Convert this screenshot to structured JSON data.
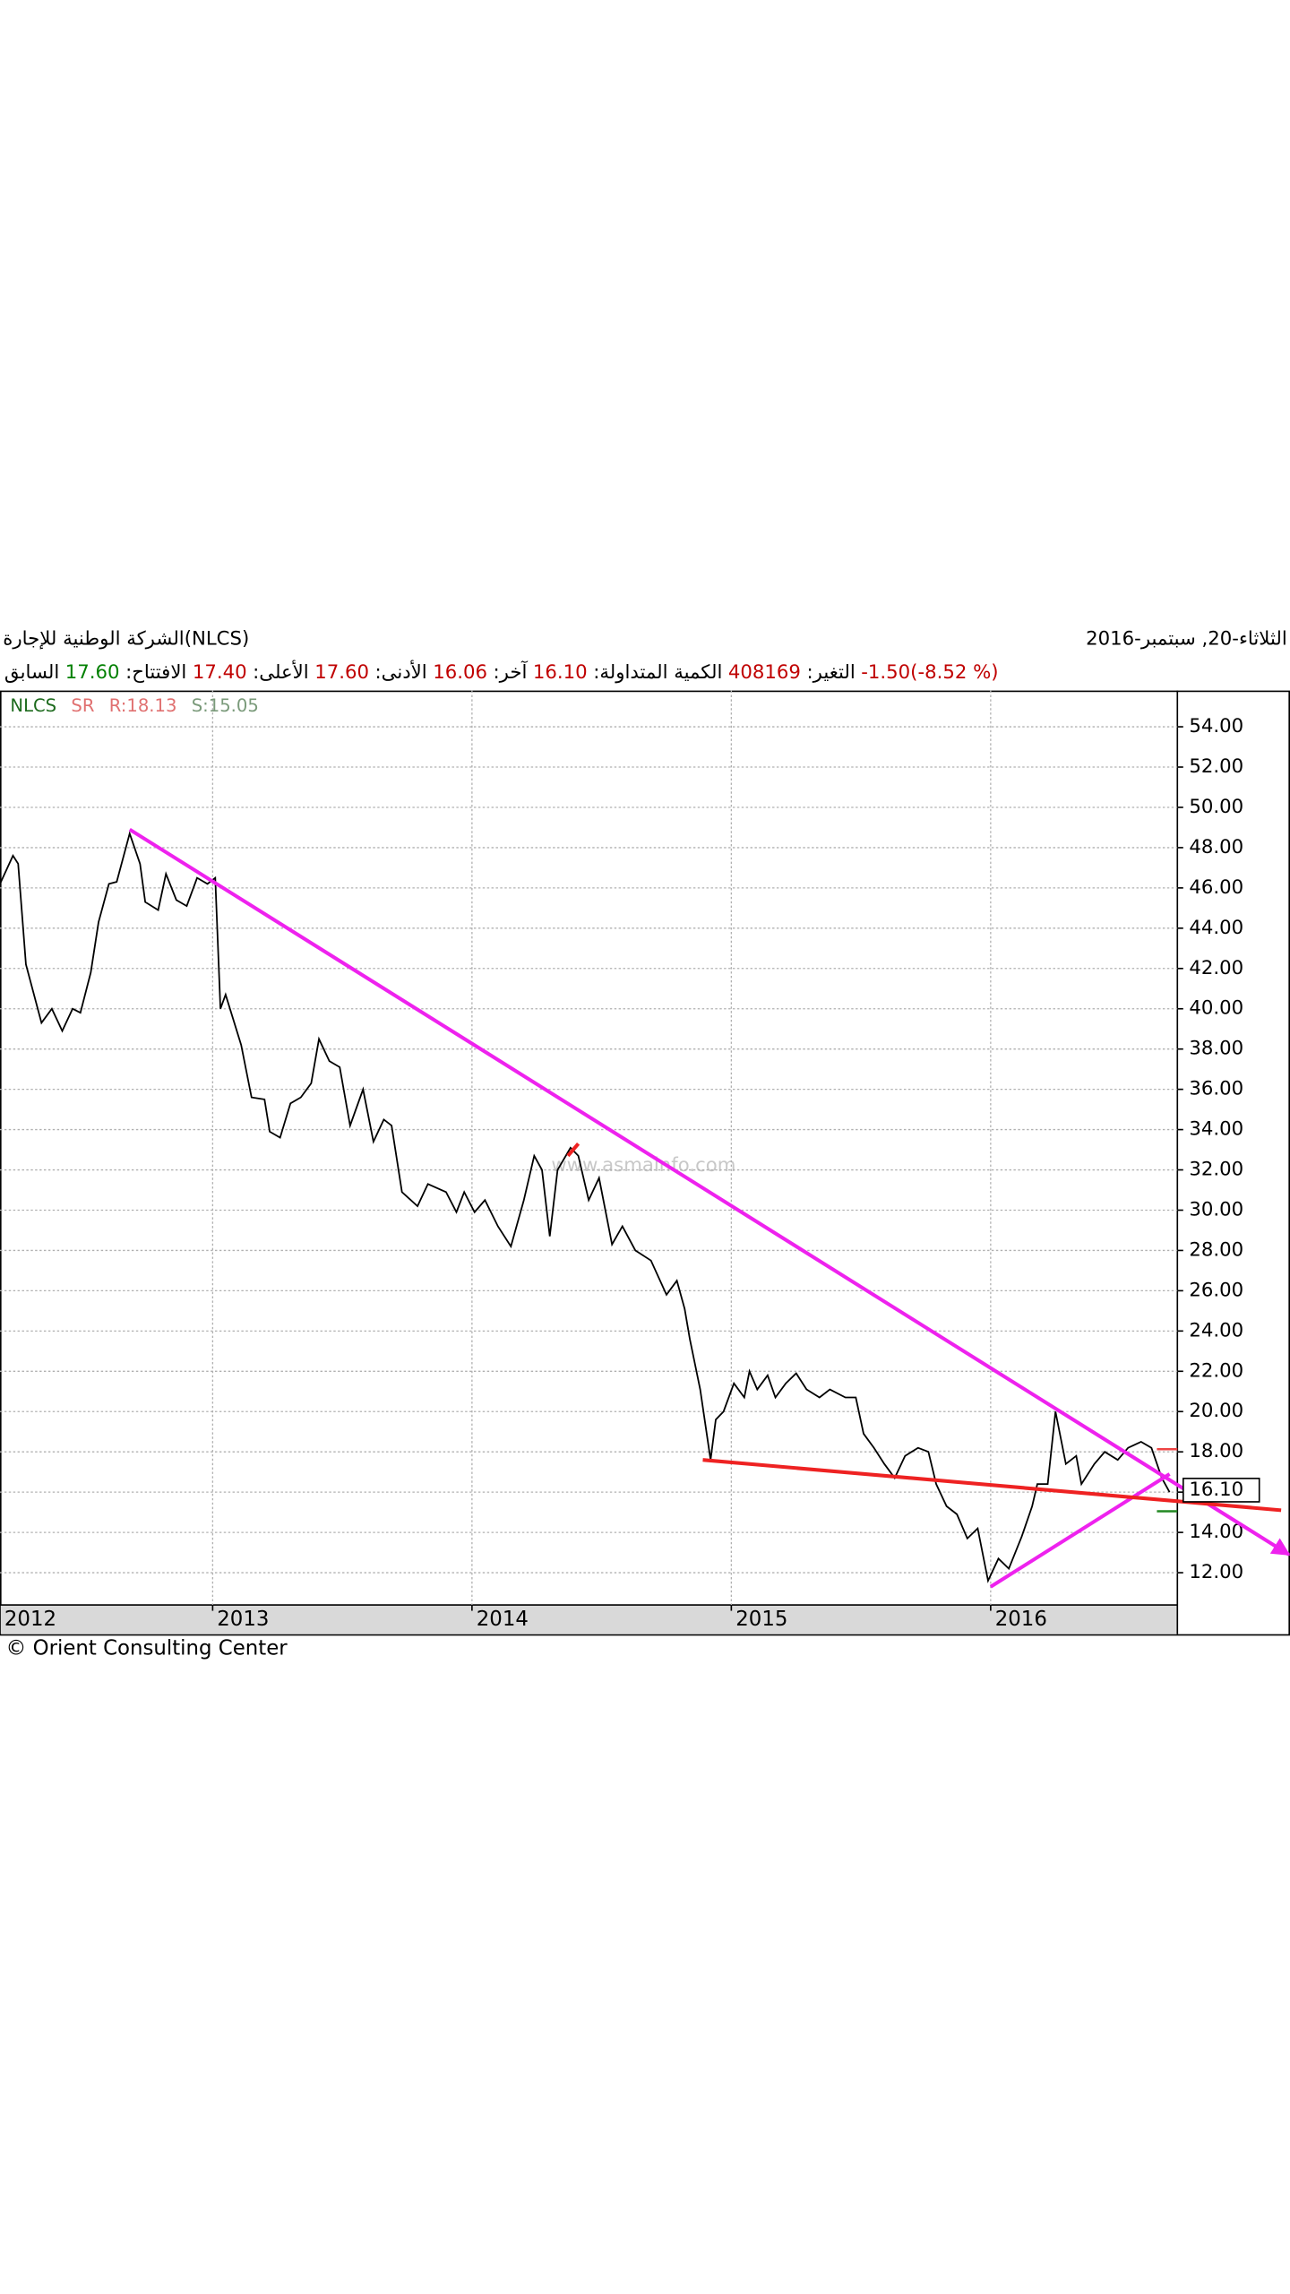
{
  "chart_data": {
    "type": "line",
    "title": "الشركة الوطنية للإجارة(NLCS)",
    "date": "الثلاثاء-20, سبتمبر-2016",
    "quote": [
      {
        "text": "السابق",
        "color": "#000000"
      },
      {
        "text": "17.60",
        "color": "#008000"
      },
      {
        "text": ":الافتتاح",
        "color": "#000000"
      },
      {
        "text": "17.40",
        "color": "#c00000"
      },
      {
        "text": ":الأعلى",
        "color": "#000000"
      },
      {
        "text": "17.60",
        "color": "#c00000"
      },
      {
        "text": ":الأدنى",
        "color": "#000000"
      },
      {
        "text": "16.06",
        "color": "#c00000"
      },
      {
        "text": ":آخر",
        "color": "#000000"
      },
      {
        "text": "16.10",
        "color": "#c00000"
      },
      {
        "text": ":الكمية المتداولة",
        "color": "#000000"
      },
      {
        "text": "408169",
        "color": "#c00000"
      },
      {
        "text": ":التغير",
        "color": "#000000"
      },
      {
        "text": "-1.50(-8.52 %)",
        "color": "#c00000"
      }
    ],
    "legend": [
      {
        "text": "SR",
        "color": "#e07070"
      },
      {
        "text": "R:18.13",
        "color": "#e07070"
      },
      {
        "text": "S:15.05",
        "color": "#7a9a7a"
      }
    ],
    "series": [
      {
        "name": "NLCS",
        "color": "#000000",
        "legend_color": "#1e6b1e",
        "x": [
          2012.18,
          2012.23,
          2012.25,
          2012.28,
          2012.34,
          2012.38,
          2012.42,
          2012.46,
          2012.49,
          2012.53,
          2012.56,
          2012.6,
          2012.63,
          2012.68,
          2012.72,
          2012.74,
          2012.79,
          2012.82,
          2012.86,
          2012.9,
          2012.94,
          2012.98,
          2013.01,
          2013.03,
          2013.05,
          2013.11,
          2013.15,
          2013.2,
          2013.22,
          2013.26,
          2013.3,
          2013.34,
          2013.38,
          2013.41,
          2013.45,
          2013.49,
          2013.53,
          2013.58,
          2013.62,
          2013.66,
          2013.69,
          2013.73,
          2013.79,
          2013.83,
          2013.9,
          2013.94,
          2013.97,
          2014.01,
          2014.05,
          2014.1,
          2014.15,
          2014.2,
          2014.24,
          2014.27,
          2014.3,
          2014.33,
          2014.38,
          2014.41,
          2014.45,
          2014.49,
          2014.54,
          2014.58,
          2014.63,
          2014.69,
          2014.75,
          2014.79,
          2014.82,
          2014.84,
          2014.88,
          2014.92,
          2014.94,
          2014.97,
          2015.01,
          2015.05,
          2015.07,
          2015.1,
          2015.14,
          2015.17,
          2015.21,
          2015.25,
          2015.29,
          2015.34,
          2015.38,
          2015.44,
          2015.48,
          2015.51,
          2015.55,
          2015.59,
          2015.63,
          2015.67,
          2015.72,
          2015.76,
          2015.79,
          2015.83,
          2015.87,
          2015.91,
          2015.95,
          2015.99,
          2016.03,
          2016.07,
          2016.12,
          2016.16,
          2016.18,
          2016.22,
          2016.25,
          2016.29,
          2016.33,
          2016.35,
          2016.4,
          2016.44,
          2016.49,
          2016.53,
          2016.58,
          2016.62,
          2016.66,
          2016.69
        ],
        "values": [
          46.2,
          47.6,
          47.2,
          42.2,
          39.3,
          40.0,
          38.9,
          40.0,
          39.8,
          41.8,
          44.3,
          46.2,
          46.3,
          48.7,
          47.2,
          45.3,
          44.9,
          46.7,
          45.4,
          45.1,
          46.5,
          46.2,
          46.5,
          40.0,
          40.7,
          38.2,
          35.6,
          35.5,
          33.9,
          33.6,
          35.3,
          35.6,
          36.3,
          38.5,
          37.4,
          37.1,
          34.2,
          36.0,
          33.4,
          34.5,
          34.2,
          30.9,
          30.2,
          31.3,
          30.9,
          29.9,
          30.9,
          29.9,
          30.5,
          29.2,
          28.2,
          30.5,
          32.7,
          32.0,
          28.7,
          32.0,
          33.1,
          32.7,
          30.5,
          31.6,
          28.3,
          29.2,
          28.0,
          27.5,
          25.8,
          26.5,
          25.1,
          23.6,
          21.1,
          17.6,
          19.6,
          20.0,
          21.4,
          20.7,
          22.0,
          21.1,
          21.8,
          20.7,
          21.4,
          21.9,
          21.1,
          20.7,
          21.1,
          20.7,
          20.7,
          18.9,
          18.2,
          17.4,
          16.7,
          17.8,
          18.2,
          18.0,
          16.4,
          15.3,
          14.9,
          13.7,
          14.2,
          11.6,
          12.7,
          12.2,
          13.8,
          15.3,
          16.4,
          16.4,
          20.0,
          17.4,
          17.8,
          16.4,
          17.4,
          18.0,
          17.6,
          18.2,
          18.5,
          18.2,
          16.7,
          16.0
        ]
      }
    ],
    "trend_lines": [
      {
        "color": "#ee22ee",
        "arrow": true,
        "x": [
          2012.68,
          2017.15
        ],
        "values": [
          48.9,
          12.9
        ]
      },
      {
        "color": "#ee22ee",
        "x": [
          2016.0,
          2016.69
        ],
        "values": [
          11.3,
          16.9
        ]
      },
      {
        "color": "#ee2222",
        "x": [
          2014.89,
          2017.12
        ],
        "values": [
          17.6,
          15.1
        ]
      },
      {
        "color": "#ee2222",
        "x": [
          2014.37,
          2014.41
        ],
        "values": [
          32.7,
          33.3
        ]
      }
    ],
    "resistance": {
      "value": 18.13,
      "color": "#ee4444"
    },
    "support": {
      "value": 15.05,
      "color": "#228822"
    },
    "last": {
      "value": 16.1,
      "label": "16.10"
    },
    "xlim": [
      2012.18,
      2016.72
    ],
    "xticks": [
      2012,
      2013,
      2014,
      2015,
      2016
    ],
    "ylim": [
      10.4,
      55.8
    ],
    "yticks": [
      {
        "value": 12,
        "label": "12.00"
      },
      {
        "value": 14,
        "label": "14.00"
      },
      {
        "value": 16,
        "label": "16.00"
      },
      {
        "value": 18,
        "label": "18.00"
      },
      {
        "value": 20,
        "label": "20.00"
      },
      {
        "value": 22,
        "label": "22.00"
      },
      {
        "value": 24,
        "label": "24.00"
      },
      {
        "value": 26,
        "label": "26.00"
      },
      {
        "value": 28,
        "label": "28.00"
      },
      {
        "value": 30,
        "label": "30.00"
      },
      {
        "value": 32,
        "label": "32.00"
      },
      {
        "value": 34,
        "label": "34.00"
      },
      {
        "value": 36,
        "label": "36.00"
      },
      {
        "value": 38,
        "label": "38.00"
      },
      {
        "value": 40,
        "label": "40.00"
      },
      {
        "value": 42,
        "label": "42.00"
      },
      {
        "value": 44,
        "label": "44.00"
      },
      {
        "value": 46,
        "label": "46.00"
      },
      {
        "value": 48,
        "label": "48.00"
      },
      {
        "value": 50,
        "label": "50.00"
      },
      {
        "value": 52,
        "label": "52.00"
      },
      {
        "value": 54,
        "label": "54.00"
      }
    ],
    "grid": true,
    "watermark": "www.asmainfo.com",
    "footer": "© Orient Consulting Center"
  }
}
